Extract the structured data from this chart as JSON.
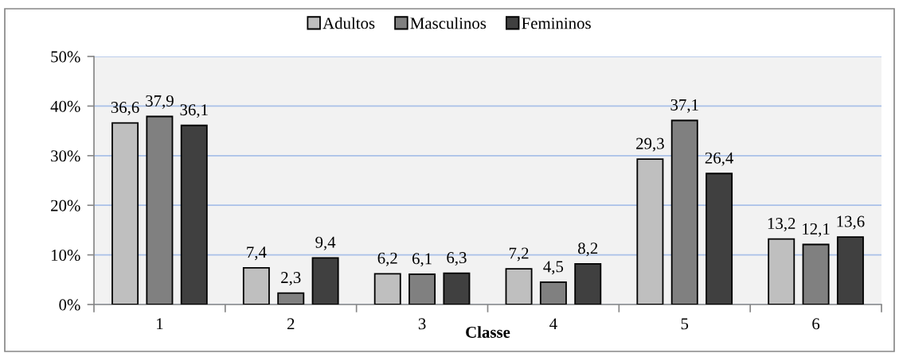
{
  "chart_data": {
    "type": "bar",
    "xlabel": "Classe",
    "categories": [
      "1",
      "2",
      "3",
      "4",
      "5",
      "6"
    ],
    "series": [
      {
        "name": "Adultos",
        "color": "#bfbfbf",
        "values": [
          36.6,
          7.4,
          6.2,
          7.2,
          29.3,
          13.2
        ],
        "value_labels": [
          "36,6",
          "7,4",
          "6,2",
          "7,2",
          "29,3",
          "13,2"
        ]
      },
      {
        "name": "Masculinos",
        "color": "#808080",
        "values": [
          37.9,
          2.3,
          6.1,
          4.5,
          37.1,
          12.1
        ],
        "value_labels": [
          "37,9",
          "2,3",
          "6,1",
          "4,5",
          "37,1",
          "12,1"
        ]
      },
      {
        "name": "Femininos",
        "color": "#404040",
        "values": [
          36.1,
          9.4,
          6.3,
          8.2,
          26.4,
          13.6
        ],
        "value_labels": [
          "36,1",
          "9,4",
          "6,3",
          "8,2",
          "26,4",
          "13,6"
        ]
      }
    ],
    "ylim": [
      0,
      50
    ],
    "yticks": [
      {
        "value": 0,
        "label": "0%"
      },
      {
        "value": 10,
        "label": "10%"
      },
      {
        "value": 20,
        "label": "20%"
      },
      {
        "value": 30,
        "label": "30%"
      },
      {
        "value": 40,
        "label": "40%"
      },
      {
        "value": 50,
        "label": "50%"
      }
    ],
    "grid": "y",
    "legend": "top"
  }
}
